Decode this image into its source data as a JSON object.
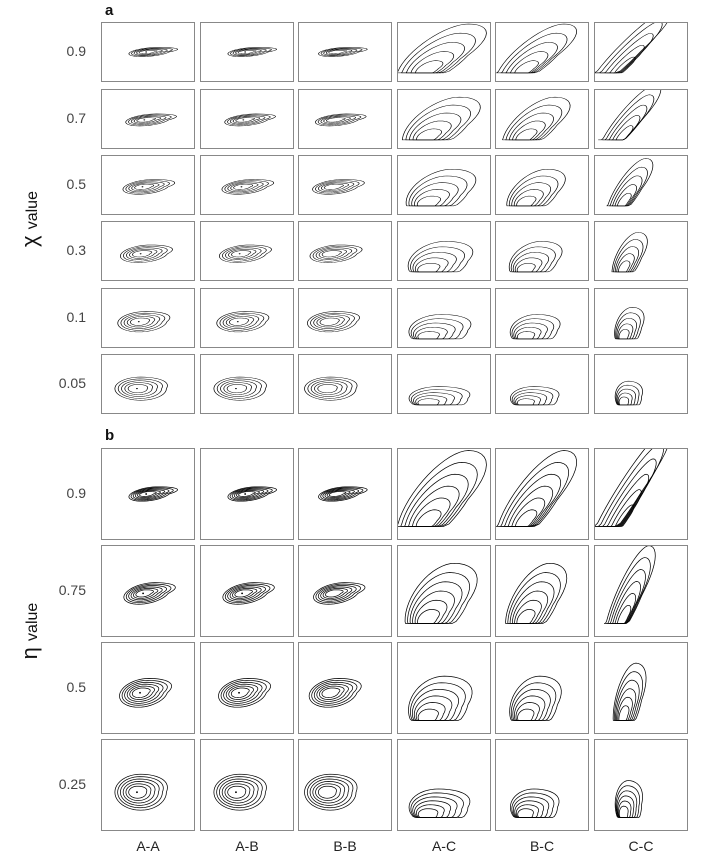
{
  "panel_a": {
    "letter": "a",
    "axis_title_main": "χ",
    "axis_title_sub": "value",
    "rows": [
      "0.9",
      "0.7",
      "0.5",
      "0.3",
      "0.1",
      "0.05"
    ]
  },
  "panel_b": {
    "letter": "b",
    "axis_title_main": "η",
    "axis_title_sub": "value",
    "rows": [
      "0.9",
      "0.75",
      "0.5",
      "0.25"
    ]
  },
  "columns": [
    "A-A",
    "A-B",
    "B-B",
    "A-C",
    "B-C",
    "C-C"
  ]
}
